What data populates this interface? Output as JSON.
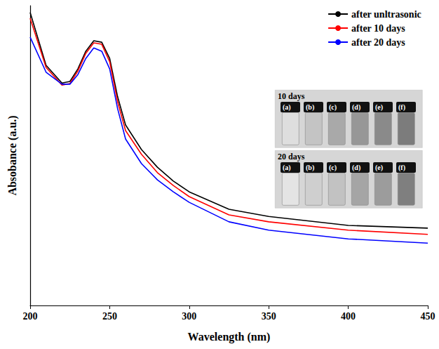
{
  "chart_data": {
    "type": "line",
    "x_label": "Wavelength (nm)",
    "y_label": "Absobance (a.u.)",
    "x": [
      200,
      210,
      220,
      225,
      230,
      235,
      240,
      245,
      250,
      255,
      260,
      270,
      280,
      290,
      300,
      325,
      350,
      400,
      450
    ],
    "series": [
      {
        "name": "after unltrasonic",
        "color": "#000000",
        "values": [
          0.977,
          0.801,
          0.742,
          0.747,
          0.789,
          0.848,
          0.883,
          0.878,
          0.824,
          0.696,
          0.602,
          0.52,
          0.461,
          0.415,
          0.379,
          0.321,
          0.297,
          0.267,
          0.258
        ]
      },
      {
        "name": "after 10 days",
        "color": "#ff0000",
        "values": [
          0.958,
          0.794,
          0.735,
          0.74,
          0.782,
          0.841,
          0.876,
          0.871,
          0.813,
          0.679,
          0.583,
          0.504,
          0.443,
          0.4,
          0.363,
          0.302,
          0.279,
          0.251,
          0.237
        ]
      },
      {
        "name": "after 20 days",
        "color": "#0000ff",
        "values": [
          0.895,
          0.778,
          0.738,
          0.738,
          0.77,
          0.824,
          0.859,
          0.848,
          0.789,
          0.656,
          0.555,
          0.473,
          0.419,
          0.379,
          0.344,
          0.279,
          0.251,
          0.222,
          0.208
        ]
      }
    ],
    "xlim": [
      200,
      450
    ],
    "xticks": [
      200,
      250,
      300,
      350,
      400,
      450
    ],
    "ylim": [
      0,
      1
    ],
    "tick_labels": "x",
    "grid": false,
    "legend": "upper right",
    "inset": {
      "panels": [
        {
          "title": "10 days",
          "labels": [
            "(a)",
            "(b)",
            "(c)",
            "(d)",
            "(e)",
            "(f)"
          ]
        },
        {
          "title": "20 days",
          "labels": [
            "(a)",
            "(b)",
            "(c)",
            "(d)",
            "(e)",
            "(f)"
          ]
        }
      ]
    }
  }
}
